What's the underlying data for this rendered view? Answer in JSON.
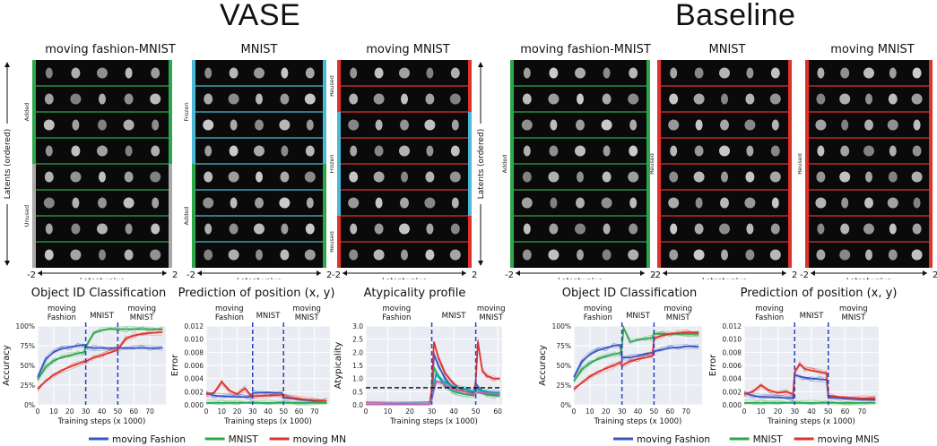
{
  "titles": {
    "vase": "VASE",
    "baseline": "Baseline"
  },
  "colors": {
    "blue": "#3a55c4",
    "green": "#2ca84a",
    "red": "#e0322c",
    "cyan": "#4ab9d8",
    "gray": "#a8a8a8",
    "grid_bg": "#e9ecf2"
  },
  "grids": [
    {
      "title": "moving fashion-MNIST",
      "ylabel": "Latents (ordered)",
      "xlabel": "Latent value",
      "xmin": "-2",
      "xmax": "2",
      "rows": 8,
      "row_border": "#2ca84a",
      "left_bar": "#2ca84a",
      "right_bar": "#2ca84a",
      "sections": [
        {
          "label": "Added",
          "from": 0,
          "to": 4,
          "color": "#2ca84a"
        },
        {
          "label": "Unused",
          "from": 4,
          "to": 8,
          "color": "#a8a8a8"
        }
      ]
    },
    {
      "title": "MNIST",
      "ylabel": "",
      "xlabel": "Latent value",
      "xmin": "-2",
      "xmax": "2",
      "rows": 8,
      "row_border": "#4ab9d8",
      "left_bar": "#4ab9d8",
      "right_bar": "#4ab9d8",
      "sections": [
        {
          "label": "Frozen",
          "from": 0,
          "to": 4,
          "color": "#4ab9d8"
        },
        {
          "label": "Added",
          "from": 4,
          "to": 8,
          "color": "#2ca84a"
        }
      ]
    },
    {
      "title": "moving MNIST",
      "ylabel": "",
      "xlabel": "Latent value",
      "xmin": "-2",
      "xmax": "2",
      "rows": 8,
      "row_border": "#e0322c",
      "left_bar": "#e0322c",
      "right_bar": "#e0322c",
      "sections": [
        {
          "label": "Reused",
          "from": 0,
          "to": 2,
          "color": "#e0322c"
        },
        {
          "label": "Frozen",
          "from": 2,
          "to": 6,
          "color": "#4ab9d8"
        },
        {
          "label": "Reused",
          "from": 6,
          "to": 8,
          "color": "#e0322c"
        }
      ]
    },
    {
      "title": "moving fashion-MNIST",
      "ylabel": "Latents (ordered)",
      "xlabel": "Latent value",
      "xmin": "-2",
      "xmax": "2",
      "rows": 8,
      "row_border": "#2ca84a",
      "left_bar": "#2ca84a",
      "right_bar": "#2ca84a",
      "sections": [
        {
          "label": "Added",
          "from": 0,
          "to": 8,
          "color": "#2ca84a"
        }
      ]
    },
    {
      "title": "MNIST",
      "ylabel": "",
      "xlabel": "Latent value",
      "xmin": "-2",
      "xmax": "2",
      "rows": 8,
      "row_border": "#e0322c",
      "left_bar": "#e0322c",
      "right_bar": "#e0322c",
      "sections": [
        {
          "label": "Reused",
          "from": 0,
          "to": 8,
          "color": "#e0322c"
        }
      ]
    },
    {
      "title": "moving MNIST",
      "ylabel": "",
      "xlabel": "Latent value",
      "xmin": "-2",
      "xmax": "2",
      "rows": 8,
      "row_border": "#e0322c",
      "left_bar": "#e0322c",
      "right_bar": "#e0322c",
      "sections": [
        {
          "label": "Reused",
          "from": 0,
          "to": 8,
          "color": "#e0322c"
        }
      ]
    }
  ],
  "chart_data": [
    {
      "type": "line",
      "title": "Object ID Classification",
      "xlabel": "Training steps  (x 1000)",
      "ylabel": "Accuracy",
      "xlim": [
        0,
        80
      ],
      "ylim": [
        0,
        1
      ],
      "xticks": [
        0,
        10,
        20,
        30,
        40,
        50,
        60,
        70
      ],
      "yticks": [
        0,
        0.25,
        0.5,
        0.75,
        1.0
      ],
      "yticklabels": [
        "0%",
        "25%",
        "50%",
        "75%",
        "100%"
      ],
      "vlines": [
        30,
        50
      ],
      "phases": [
        {
          "label": "moving\nFashion",
          "x": 15
        },
        {
          "label": "MNIST",
          "x": 40
        },
        {
          "label": "moving\nMNIST",
          "x": 65
        }
      ],
      "series": [
        {
          "name": "moving Fashion",
          "color": "#3a55c4",
          "x": [
            0,
            5,
            10,
            15,
            20,
            25,
            29,
            30,
            35,
            40,
            45,
            50,
            55,
            60,
            65,
            70,
            78
          ],
          "y": [
            0.35,
            0.58,
            0.67,
            0.71,
            0.73,
            0.75,
            0.76,
            0.73,
            0.72,
            0.72,
            0.72,
            0.72,
            0.72,
            0.72,
            0.72,
            0.72,
            0.72
          ]
        },
        {
          "name": "MNIST",
          "color": "#2ca84a",
          "x": [
            0,
            5,
            10,
            15,
            20,
            25,
            29,
            30,
            35,
            40,
            45,
            50,
            55,
            60,
            65,
            70,
            78
          ],
          "y": [
            0.32,
            0.48,
            0.56,
            0.6,
            0.63,
            0.65,
            0.67,
            0.74,
            0.91,
            0.95,
            0.96,
            0.96,
            0.96,
            0.96,
            0.96,
            0.96,
            0.96
          ]
        },
        {
          "name": "moving MNIST",
          "color": "#e0322c",
          "x": [
            0,
            5,
            10,
            15,
            20,
            25,
            29,
            30,
            35,
            40,
            45,
            50,
            55,
            60,
            65,
            70,
            78
          ],
          "y": [
            0.2,
            0.3,
            0.38,
            0.44,
            0.48,
            0.52,
            0.55,
            0.55,
            0.6,
            0.63,
            0.66,
            0.7,
            0.84,
            0.88,
            0.9,
            0.91,
            0.92
          ]
        }
      ]
    },
    {
      "type": "line",
      "title": "Prediction of position (x, y)",
      "xlabel": "Training steps  (x 1000)",
      "ylabel": "Error",
      "xlim": [
        0,
        80
      ],
      "ylim": [
        0,
        0.012
      ],
      "xticks": [
        0,
        10,
        20,
        30,
        40,
        50,
        60,
        70
      ],
      "yticks": [
        0,
        0.002,
        0.004,
        0.006,
        0.008,
        0.01,
        0.012
      ],
      "yticklabels": [
        "0.000",
        "0.002",
        "0.004",
        "0.006",
        "0.008",
        "0.010",
        "0.012"
      ],
      "vlines": [
        30,
        50
      ],
      "phases": [
        {
          "label": "moving\nFashion",
          "x": 15
        },
        {
          "label": "MNIST",
          "x": 40
        },
        {
          "label": "moving\nMNIST",
          "x": 65
        }
      ],
      "series": [
        {
          "name": "moving Fashion",
          "color": "#3a55c4",
          "x": [
            0,
            5,
            10,
            20,
            29,
            30,
            40,
            49,
            50,
            60,
            70,
            78
          ],
          "y": [
            0.0018,
            0.0014,
            0.0013,
            0.0012,
            0.0012,
            0.0018,
            0.0019,
            0.0018,
            0.0011,
            0.0008,
            0.0006,
            0.0006
          ]
        },
        {
          "name": "MNIST",
          "color": "#2ca84a",
          "x": [
            0,
            10,
            20,
            30,
            40,
            50,
            60,
            70,
            78
          ],
          "y": [
            0.0003,
            0.0003,
            0.0003,
            0.0003,
            0.0003,
            0.0003,
            0.0003,
            0.0003,
            0.0003
          ]
        },
        {
          "name": "moving MNIST",
          "color": "#e0322c",
          "x": [
            0,
            5,
            10,
            15,
            20,
            25,
            29,
            30,
            40,
            49,
            50,
            60,
            70,
            78
          ],
          "y": [
            0.0016,
            0.0018,
            0.0035,
            0.0022,
            0.0016,
            0.0025,
            0.0014,
            0.0013,
            0.0014,
            0.0015,
            0.0012,
            0.0009,
            0.0007,
            0.0006
          ]
        }
      ]
    },
    {
      "type": "line",
      "title": "Atypicality profile",
      "xlabel": "Training steps  (x 1000)",
      "ylabel": "Atypicality",
      "xlim": [
        0,
        62
      ],
      "ylim": [
        0,
        3.0
      ],
      "xticks": [
        0,
        10,
        20,
        30,
        40,
        50,
        60
      ],
      "yticks": [
        0,
        0.5,
        1.0,
        1.5,
        2.0,
        2.5,
        3.0
      ],
      "yticklabels": [
        "0.0",
        "0.5",
        "1.0",
        "1.5",
        "2.0",
        "2.5",
        "3.0"
      ],
      "vlines": [
        30,
        50
      ],
      "hline": 0.65,
      "phases": [
        {
          "label": "moving\nFashion",
          "x": 14
        },
        {
          "label": "MNIST",
          "x": 40
        },
        {
          "label": "moving\nMNIST",
          "x": 57
        }
      ],
      "series": [
        {
          "name": "",
          "color": "#3a55c4",
          "x": [
            0,
            29,
            30,
            31,
            33,
            36,
            40,
            45,
            49,
            50,
            52,
            55,
            58,
            61
          ],
          "y": [
            0.02,
            0.02,
            0.4,
            1.9,
            1.5,
            1.0,
            0.6,
            0.5,
            0.45,
            0.8,
            0.6,
            0.45,
            0.4,
            0.4
          ]
        },
        {
          "name": "",
          "color": "#2ca84a",
          "x": [
            0,
            29,
            30,
            31,
            33,
            36,
            40,
            45,
            49,
            50,
            52,
            55,
            58,
            61
          ],
          "y": [
            0.02,
            0.02,
            0.3,
            1.4,
            1.1,
            0.7,
            0.5,
            0.4,
            0.35,
            0.5,
            0.45,
            0.4,
            0.35,
            0.35
          ]
        },
        {
          "name": "",
          "color": "#e0322c",
          "x": [
            0,
            29,
            30,
            31,
            33,
            36,
            40,
            45,
            49,
            50,
            51,
            53,
            55,
            58,
            61
          ],
          "y": [
            0.02,
            0.02,
            0.6,
            2.4,
            1.8,
            1.2,
            0.8,
            0.5,
            0.4,
            0.9,
            2.4,
            1.3,
            1.1,
            1.0,
            1.0
          ]
        },
        {
          "name": "",
          "color": "#00a8a8",
          "x": [
            0,
            29,
            30,
            32,
            35,
            40,
            45,
            49,
            50,
            55,
            61
          ],
          "y": [
            0.02,
            0.02,
            0.3,
            1.2,
            0.9,
            0.7,
            0.6,
            0.5,
            0.6,
            0.5,
            0.45
          ]
        },
        {
          "name": "",
          "color": "#c060c0",
          "x": [
            0,
            29,
            30,
            32,
            35,
            40,
            45,
            49,
            50,
            55,
            61
          ],
          "y": [
            0.02,
            0.02,
            0.2,
            0.9,
            0.8,
            0.6,
            0.5,
            0.4,
            0.5,
            0.45,
            0.4
          ]
        }
      ]
    },
    {
      "type": "line",
      "title": "Object ID Classification",
      "xlabel": "Training steps  (x 1000)",
      "ylabel": "Accuracy",
      "xlim": [
        0,
        80
      ],
      "ylim": [
        0,
        1
      ],
      "xticks": [
        0,
        10,
        20,
        30,
        40,
        50,
        60,
        70
      ],
      "yticks": [
        0,
        0.25,
        0.5,
        0.75,
        1.0
      ],
      "yticklabels": [
        "0%",
        "25%",
        "50%",
        "75%",
        "100%"
      ],
      "vlines": [
        30,
        50
      ],
      "phases": [
        {
          "label": "moving\nFashion",
          "x": 15
        },
        {
          "label": "MNIST",
          "x": 40
        },
        {
          "label": "moving\nMNIST",
          "x": 65
        }
      ],
      "series": [
        {
          "name": "moving Fashion",
          "color": "#3a55c4",
          "x": [
            0,
            5,
            10,
            15,
            20,
            25,
            29,
            30,
            35,
            40,
            45,
            49,
            50,
            55,
            60,
            65,
            70,
            78
          ],
          "y": [
            0.35,
            0.55,
            0.64,
            0.69,
            0.72,
            0.75,
            0.76,
            0.6,
            0.6,
            0.62,
            0.65,
            0.66,
            0.68,
            0.7,
            0.72,
            0.73,
            0.74,
            0.74
          ]
        },
        {
          "name": "MNIST",
          "color": "#2ca84a",
          "x": [
            0,
            5,
            10,
            15,
            20,
            25,
            29,
            30,
            31,
            35,
            40,
            45,
            49,
            50,
            55,
            60,
            65,
            70,
            78
          ],
          "y": [
            0.3,
            0.45,
            0.53,
            0.58,
            0.62,
            0.64,
            0.66,
            0.72,
            0.98,
            0.8,
            0.82,
            0.84,
            0.85,
            0.9,
            0.9,
            0.9,
            0.9,
            0.9,
            0.9
          ]
        },
        {
          "name": "moving MNIST",
          "color": "#e0322c",
          "x": [
            0,
            5,
            10,
            15,
            20,
            25,
            29,
            30,
            35,
            40,
            45,
            49,
            50,
            55,
            60,
            65,
            70,
            78
          ],
          "y": [
            0.2,
            0.28,
            0.36,
            0.42,
            0.46,
            0.5,
            0.54,
            0.5,
            0.55,
            0.58,
            0.6,
            0.62,
            0.84,
            0.88,
            0.9,
            0.91,
            0.92,
            0.92
          ]
        }
      ]
    },
    {
      "type": "line",
      "title": "Prediction of position (x, y)",
      "xlabel": "Training steps  (x 1000)",
      "ylabel": "Error",
      "xlim": [
        0,
        80
      ],
      "ylim": [
        0,
        0.012
      ],
      "xticks": [
        0,
        10,
        20,
        30,
        40,
        50,
        60,
        70
      ],
      "yticks": [
        0,
        0.002,
        0.004,
        0.006,
        0.008,
        0.01,
        0.012
      ],
      "yticklabels": [
        "0.000",
        "0.002",
        "0.004",
        "0.006",
        "0.008",
        "0.010",
        "0.012"
      ],
      "vlines": [
        30,
        50
      ],
      "phases": [
        {
          "label": "moving\nFashion",
          "x": 15
        },
        {
          "label": "MNIST",
          "x": 40
        },
        {
          "label": "moving\nMNIST",
          "x": 65
        }
      ],
      "series": [
        {
          "name": "moving Fashion",
          "color": "#3a55c4",
          "x": [
            0,
            5,
            10,
            20,
            29,
            30,
            35,
            40,
            45,
            49,
            50,
            60,
            70,
            78
          ],
          "y": [
            0.0018,
            0.0014,
            0.0012,
            0.0011,
            0.001,
            0.0045,
            0.0042,
            0.004,
            0.0039,
            0.0038,
            0.0012,
            0.0009,
            0.0008,
            0.0008
          ]
        },
        {
          "name": "MNIST",
          "color": "#2ca84a",
          "x": [
            0,
            10,
            20,
            30,
            40,
            50,
            60,
            70,
            78
          ],
          "y": [
            0.0003,
            0.0003,
            0.0003,
            0.0003,
            0.0003,
            0.0003,
            0.0003,
            0.0003,
            0.0003
          ]
        },
        {
          "name": "moving MNIST",
          "color": "#e0322c",
          "x": [
            0,
            5,
            10,
            15,
            20,
            25,
            29,
            30,
            33,
            36,
            40,
            45,
            49,
            50,
            60,
            70,
            78
          ],
          "y": [
            0.0016,
            0.002,
            0.003,
            0.0022,
            0.0018,
            0.002,
            0.0016,
            0.005,
            0.0062,
            0.0055,
            0.0052,
            0.005,
            0.0048,
            0.0014,
            0.0011,
            0.001,
            0.001
          ]
        }
      ]
    }
  ],
  "legends": [
    {
      "items": [
        {
          "label": "moving Fashion",
          "color": "#3a55c4"
        },
        {
          "label": "MNIST",
          "color": "#2ca84a"
        },
        {
          "label": "moving MNIST",
          "color": "#e0322c"
        }
      ]
    },
    {
      "items": [
        {
          "label": "moving Fashion",
          "color": "#3a55c4"
        },
        {
          "label": "MNIST",
          "color": "#2ca84a"
        },
        {
          "label": "moving MNIST",
          "color": "#e0322c"
        }
      ]
    }
  ]
}
